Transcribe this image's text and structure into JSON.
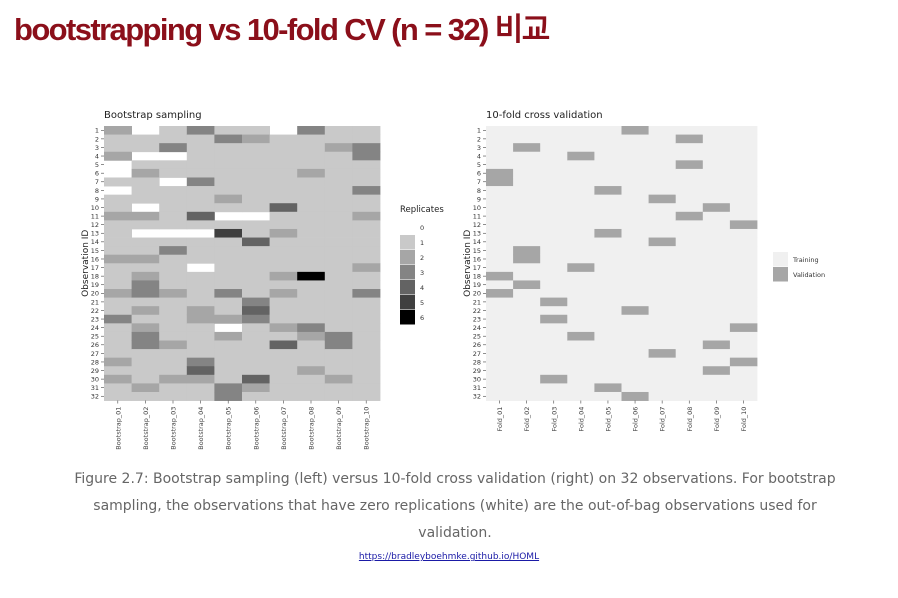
{
  "slide": {
    "title": "bootstrapping vs 10-fold CV (n = 32) 비교",
    "caption": "Figure 2.7: Bootstrap sampling (left) versus 10-fold cross validation (right) on 32 observations. For bootstrap sampling, the observations that have zero replications (white) are the out-of-bag observations used for validation.",
    "link": "https://bradleyboehmke.github.io/HOML"
  },
  "colors": {
    "title": "#8b0f1a",
    "replicate_scale": [
      "#f2f2f2",
      "#c9c9c9",
      "#a6a6a6",
      "#848484",
      "#636363",
      "#3f3f3f",
      "#000000"
    ],
    "training": "#f0f0f0",
    "validation": "#a6a6a6",
    "panel_background": "#ffffff"
  },
  "chart_data": [
    {
      "type": "heatmap",
      "title": "Bootstrap sampling",
      "xlabel": "",
      "ylabel": "Observation ID",
      "x": [
        "Bootstrap_01",
        "Bootstrap_02",
        "Bootstrap_03",
        "Bootstrap_04",
        "Bootstrap_05",
        "Bootstrap_06",
        "Bootstrap_07",
        "Bootstrap_08",
        "Bootstrap_09",
        "Bootstrap_10"
      ],
      "y": [
        1,
        2,
        3,
        4,
        5,
        6,
        7,
        8,
        9,
        10,
        11,
        12,
        13,
        14,
        15,
        16,
        17,
        18,
        19,
        20,
        21,
        22,
        23,
        24,
        25,
        26,
        27,
        28,
        29,
        30,
        31,
        32
      ],
      "legend": {
        "title": "Replicates",
        "levels": [
          0,
          1,
          2,
          3,
          4,
          5,
          6
        ],
        "placement": "right"
      },
      "grid": false,
      "values": [
        [
          2,
          1,
          1,
          2,
          0,
          0,
          1,
          0,
          1,
          1,
          2,
          1,
          1,
          1,
          1,
          2,
          1,
          1,
          1,
          2,
          1,
          1,
          3,
          1,
          1,
          1,
          1,
          2,
          1,
          2,
          1,
          1
        ],
        [
          0,
          1,
          1,
          0,
          1,
          2,
          1,
          1,
          1,
          0,
          2,
          1,
          0,
          1,
          1,
          2,
          1,
          2,
          3,
          3,
          1,
          2,
          1,
          2,
          3,
          3,
          1,
          1,
          1,
          1,
          2,
          1
        ],
        [
          1,
          1,
          3,
          0,
          1,
          1,
          0,
          1,
          1,
          1,
          1,
          1,
          0,
          1,
          3,
          1,
          1,
          1,
          1,
          2,
          1,
          1,
          1,
          1,
          1,
          2,
          1,
          1,
          1,
          2,
          1,
          1
        ],
        [
          3,
          1,
          1,
          1,
          1,
          1,
          3,
          1,
          1,
          1,
          4,
          1,
          0,
          1,
          1,
          1,
          0,
          1,
          1,
          1,
          1,
          2,
          2,
          1,
          1,
          1,
          1,
          3,
          4,
          2,
          1,
          1
        ],
        [
          1,
          3,
          1,
          1,
          1,
          1,
          1,
          1,
          2,
          1,
          0,
          1,
          5,
          1,
          1,
          1,
          1,
          1,
          1,
          3,
          1,
          1,
          2,
          0,
          2,
          1,
          1,
          1,
          1,
          1,
          3,
          3
        ],
        [
          1,
          2,
          1,
          1,
          1,
          1,
          1,
          1,
          1,
          1,
          0,
          1,
          1,
          4,
          1,
          1,
          1,
          1,
          1,
          1,
          3,
          4,
          3,
          1,
          1,
          1,
          1,
          1,
          1,
          4,
          2,
          1
        ],
        [
          0,
          1,
          1,
          1,
          1,
          1,
          1,
          1,
          1,
          4,
          1,
          1,
          2,
          1,
          1,
          1,
          1,
          2,
          1,
          2,
          1,
          1,
          1,
          2,
          1,
          4,
          1,
          1,
          1,
          1,
          1,
          1
        ],
        [
          3,
          1,
          1,
          1,
          1,
          2,
          1,
          1,
          1,
          1,
          1,
          1,
          1,
          1,
          1,
          1,
          1,
          6,
          1,
          1,
          1,
          1,
          1,
          3,
          2,
          1,
          1,
          1,
          2,
          1,
          1,
          1
        ],
        [
          1,
          1,
          2,
          1,
          1,
          1,
          1,
          1,
          1,
          1,
          1,
          1,
          1,
          1,
          1,
          1,
          1,
          1,
          1,
          1,
          1,
          1,
          1,
          1,
          3,
          3,
          1,
          1,
          1,
          2,
          1,
          1
        ],
        [
          1,
          1,
          3,
          3,
          1,
          1,
          1,
          3,
          1,
          1,
          2,
          1,
          1,
          1,
          1,
          1,
          2,
          1,
          1,
          3,
          1,
          1,
          1,
          1,
          1,
          1,
          1,
          1,
          1,
          1,
          1,
          1
        ]
      ]
    },
    {
      "type": "heatmap",
      "title": "10-fold cross validation",
      "xlabel": "",
      "ylabel": "Observation ID",
      "x": [
        "Fold_01",
        "Fold_02",
        "Fold_03",
        "Fold_04",
        "Fold_05",
        "Fold_06",
        "Fold_07",
        "Fold_08",
        "Fold_09",
        "Fold_10"
      ],
      "y": [
        1,
        2,
        3,
        4,
        5,
        6,
        7,
        8,
        9,
        10,
        11,
        12,
        13,
        14,
        15,
        16,
        17,
        18,
        19,
        20,
        21,
        22,
        23,
        24,
        25,
        26,
        27,
        28,
        29,
        30,
        31,
        32
      ],
      "legend": {
        "title": "",
        "levels": [
          "Training",
          "Validation"
        ],
        "placement": "right"
      },
      "grid": false,
      "validation_ids": [
        [
          6,
          7,
          18,
          20
        ],
        [
          3,
          15,
          16,
          19
        ],
        [
          21,
          23,
          30
        ],
        [
          4,
          17,
          25
        ],
        [
          8,
          13,
          31
        ],
        [
          1,
          22,
          32
        ],
        [
          9,
          14,
          27
        ],
        [
          2,
          5,
          11
        ],
        [
          10,
          26,
          29
        ],
        [
          12,
          24,
          28
        ]
      ]
    }
  ]
}
